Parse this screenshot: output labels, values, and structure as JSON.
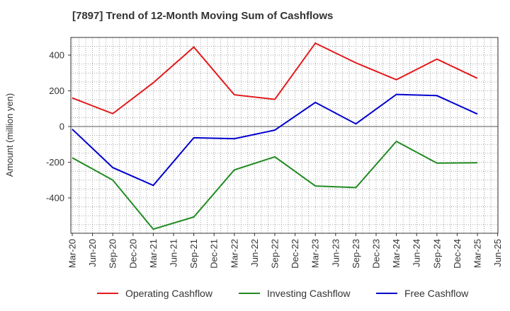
{
  "title": "[7897]  Trend of 12-Month Moving Sum of Cashflows",
  "chart_data": {
    "type": "line",
    "title": "[7897]  Trend of 12-Month Moving Sum of Cashflows",
    "xlabel": "",
    "ylabel": "Amount (million yen)",
    "x_ticks": [
      "Mar-20",
      "Jun-20",
      "Sep-20",
      "Dec-20",
      "Mar-21",
      "Jun-21",
      "Sep-21",
      "Dec-21",
      "Mar-22",
      "Jun-22",
      "Sep-22",
      "Dec-22",
      "Mar-23",
      "Jun-23",
      "Sep-23",
      "Dec-23",
      "Mar-24",
      "Jun-24",
      "Sep-24",
      "Dec-24",
      "Mar-25",
      "Jun-25"
    ],
    "y_ticks": [
      400,
      200,
      0,
      -200,
      -400
    ],
    "y_tick_labels": [
      "400",
      "200",
      "0",
      "-200",
      "-400"
    ],
    "ylim": [
      -600,
      500
    ],
    "grid": true,
    "legend_position": "bottom",
    "series": [
      {
        "name": "Operating Cashflow",
        "color": "#e31a1c",
        "points": [
          [
            "Mar-20",
            160
          ],
          [
            "Sep-20",
            72
          ],
          [
            "Mar-21",
            245
          ],
          [
            "Sep-21",
            445
          ],
          [
            "Mar-22",
            178
          ],
          [
            "Sep-22",
            152
          ],
          [
            "Mar-23",
            467
          ],
          [
            "Sep-23",
            357
          ],
          [
            "Mar-24",
            262
          ],
          [
            "Sep-24",
            378
          ],
          [
            "Mar-25",
            270
          ]
        ]
      },
      {
        "name": "Investing Cashflow",
        "color": "#228b22",
        "points": [
          [
            "Mar-20",
            -175
          ],
          [
            "Sep-20",
            -300
          ],
          [
            "Mar-21",
            -575
          ],
          [
            "Sep-21",
            -507
          ],
          [
            "Mar-22",
            -243
          ],
          [
            "Sep-22",
            -170
          ],
          [
            "Mar-23",
            -333
          ],
          [
            "Sep-23",
            -342
          ],
          [
            "Mar-24",
            -83
          ],
          [
            "Sep-24",
            -205
          ],
          [
            "Mar-25",
            -203
          ]
        ]
      },
      {
        "name": "Free Cashflow",
        "color": "#0000cd",
        "points": [
          [
            "Mar-20",
            -15
          ],
          [
            "Sep-20",
            -230
          ],
          [
            "Mar-21",
            -330
          ],
          [
            "Sep-21",
            -63
          ],
          [
            "Mar-22",
            -68
          ],
          [
            "Sep-22",
            -20
          ],
          [
            "Mar-23",
            135
          ],
          [
            "Sep-23",
            15
          ],
          [
            "Mar-24",
            180
          ],
          [
            "Sep-24",
            173
          ],
          [
            "Mar-25",
            70
          ]
        ]
      }
    ]
  }
}
